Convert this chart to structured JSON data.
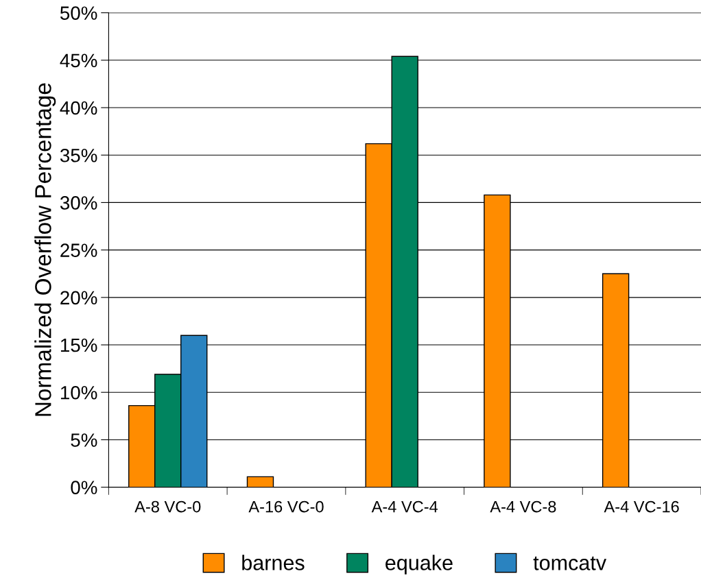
{
  "chart_data": {
    "type": "bar",
    "ylabel": "Normalized Overflow Percentage",
    "categories": [
      "A-8 VC-0",
      "A-16 VC-0",
      "A-4 VC-4",
      "A-4 VC-8",
      "A-4 VC-16"
    ],
    "series": [
      {
        "name": "barnes",
        "color": "#ff8c00",
        "values": [
          8.6,
          1.1,
          36.2,
          30.8,
          22.5
        ]
      },
      {
        "name": "equake",
        "color": "#00845f",
        "values": [
          11.9,
          null,
          45.4,
          null,
          null
        ]
      },
      {
        "name": "tomcatv",
        "color": "#2a83c0",
        "values": [
          16.0,
          null,
          null,
          null,
          null
        ]
      }
    ],
    "ylim": [
      0,
      50
    ],
    "yticks": [
      {
        "value": 0,
        "label": "0%"
      },
      {
        "value": 5,
        "label": "5%"
      },
      {
        "value": 10,
        "label": "10%"
      },
      {
        "value": 15,
        "label": "15%"
      },
      {
        "value": 20,
        "label": "20%"
      },
      {
        "value": 25,
        "label": "25%"
      },
      {
        "value": 30,
        "label": "30%"
      },
      {
        "value": 35,
        "label": "35%"
      },
      {
        "value": 40,
        "label": "40%"
      },
      {
        "value": 45,
        "label": "45%"
      },
      {
        "value": 50,
        "label": "50%"
      }
    ],
    "grid": "y",
    "legend": "bottom"
  }
}
